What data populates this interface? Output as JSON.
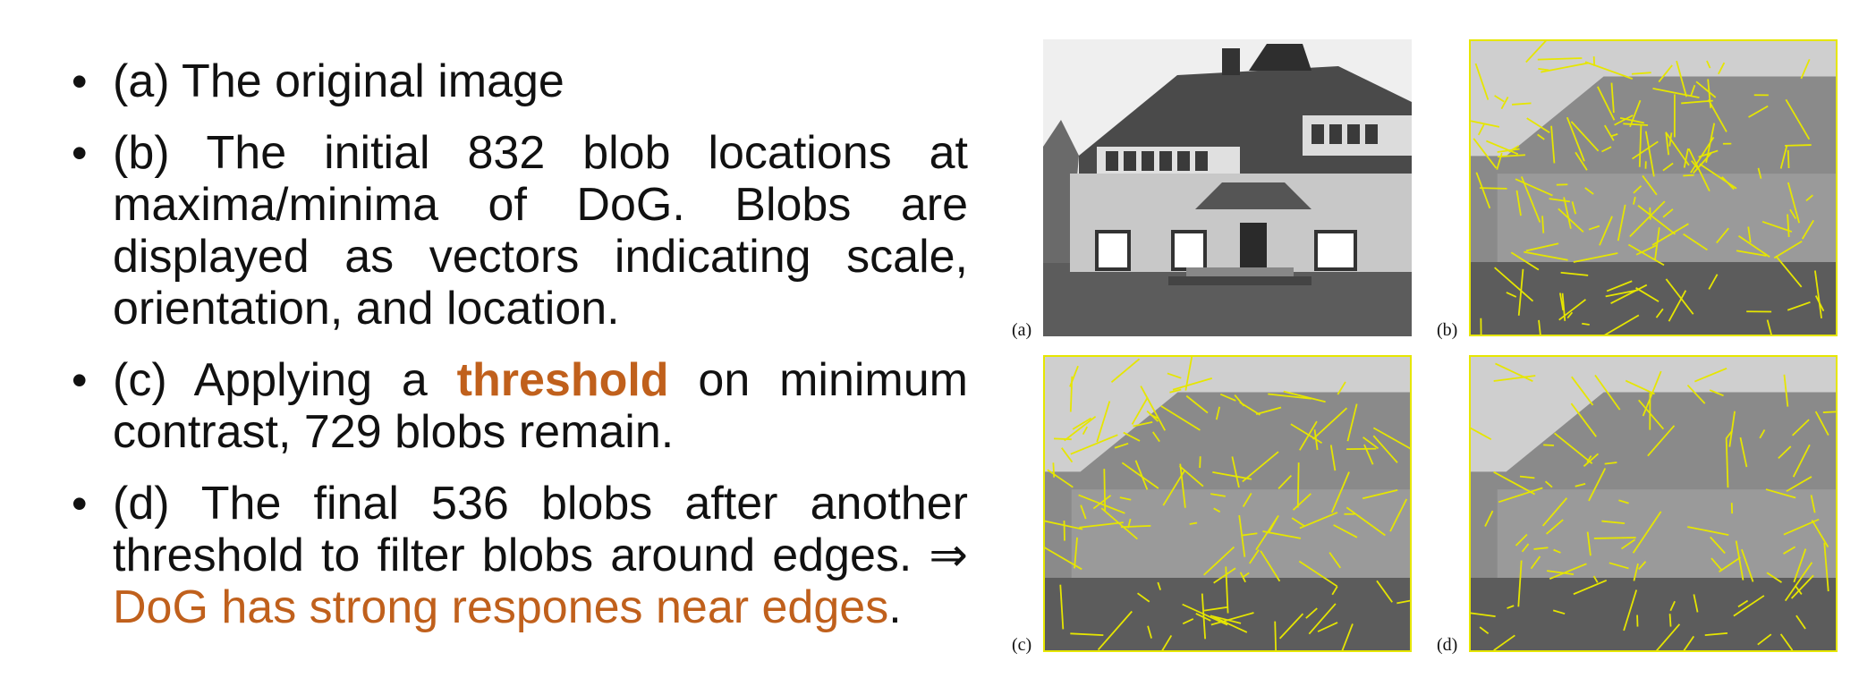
{
  "bullets": [
    {
      "marker": "•",
      "text": "(a) The original image"
    },
    {
      "marker": "•",
      "text": "(b) The initial 832 blob locations at maxima/minima of DoG. Blobs are displayed as vectors indicating scale, orientation, and location."
    },
    {
      "marker": "•",
      "text_before": "(c) Applying a ",
      "highlight": "threshold",
      "text_after": " on minimum contrast, 729 blobs remain."
    },
    {
      "marker": "•",
      "text": "(d) The final 536 blobs after another threshold to filter blobs around edges. ⇒ ",
      "highlight": "DoG has strong respones near edges",
      "text_end": "."
    }
  ],
  "figure": {
    "labels": {
      "a": "(a)",
      "b": "(b)",
      "c": "(c)",
      "d": "(d)"
    },
    "overlay_color": "#e6e600",
    "accent_color": "#c0601c"
  }
}
